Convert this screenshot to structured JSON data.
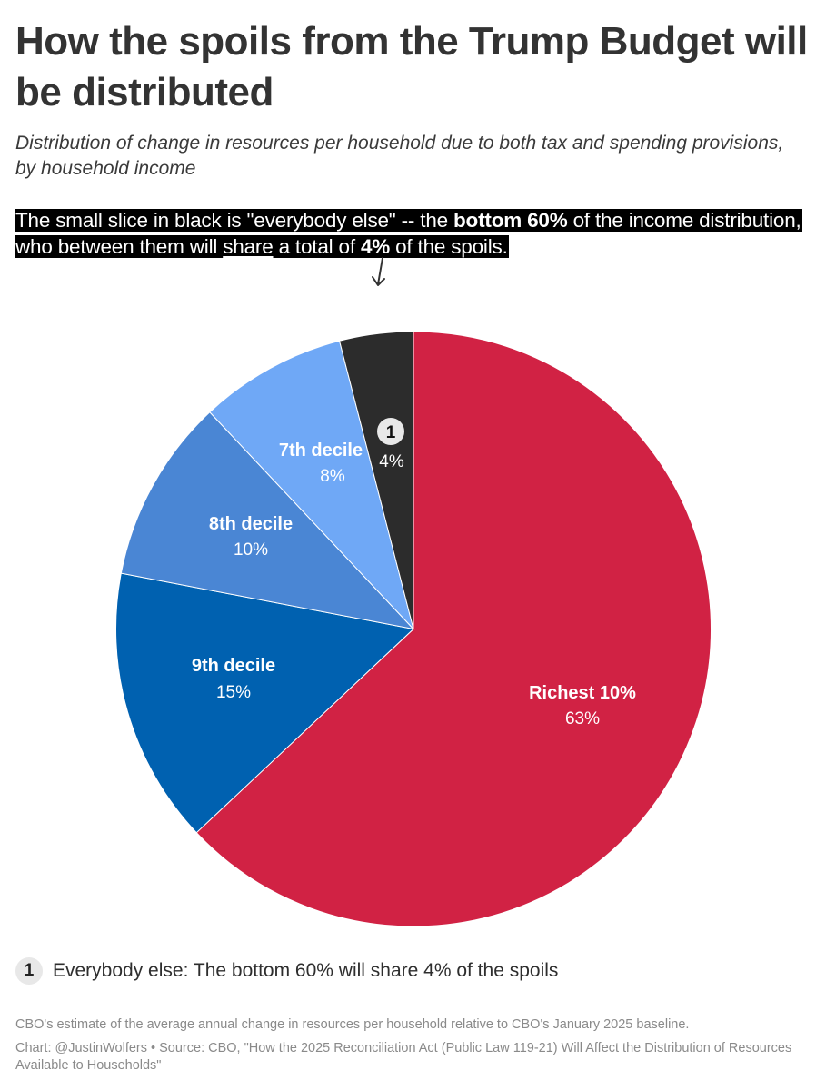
{
  "header": {
    "title": "How the spoils from the Trump Budget will be distributed",
    "subtitle": "Distribution of change in resources per household due to both tax and spending provisions, by household income"
  },
  "annotation": {
    "part1": "The small slice in black is \"everybody else\" -- the ",
    "bold1": "bottom 60%",
    "part2": " of the income distribution, who between them will ",
    "underlined": "share",
    "part3": " a total of ",
    "bold2": "4%",
    "part4": " of the spoils."
  },
  "chart_data": {
    "type": "pie",
    "title": "How the spoils from the Trump Budget will be distributed",
    "subtitle": "Distribution of change in resources per household due to both tax and spending provisions, by household income",
    "categories": [
      "Richest 10%",
      "9th decile",
      "8th decile",
      "7th decile",
      "Everybody else (bottom 60%)"
    ],
    "values": [
      63,
      15,
      10,
      8,
      4
    ],
    "unit": "%",
    "start_angle": "12 o'clock, clockwise",
    "colors": [
      "#d12244",
      "#0061b0",
      "#4a86d4",
      "#6fa8f6",
      "#2c2c2c"
    ],
    "labels": [
      {
        "name": "Richest 10%",
        "value": "63%"
      },
      {
        "name": "9th decile",
        "value": "15%"
      },
      {
        "name": "8th decile",
        "value": "10%"
      },
      {
        "name": "7th decile",
        "value": "8%"
      },
      {
        "name": "1",
        "value": "4%"
      }
    ],
    "legend": "none (direct labels)"
  },
  "legend": {
    "badge": "1",
    "text": "Everybody else: The bottom 60% will share 4% of the spoils"
  },
  "footer": {
    "note": "CBO's estimate of the average annual change in resources per household relative to CBO's January 2025 baseline.",
    "source": "Chart: @JustinWolfers • Source: CBO, \"How the 2025 Reconciliation Act (Public Law 119-21) Will Affect the Distribution of Resources Available to Households\""
  }
}
